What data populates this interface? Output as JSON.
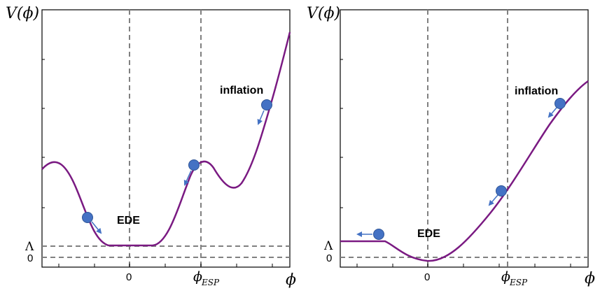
{
  "colors": {
    "curve": "#7a1a82",
    "ball": "#4472c4",
    "ball_stroke": "#2f5597",
    "arrow": "#4472c4",
    "dashed": "#808080",
    "frame": "#000000"
  },
  "left_panel": {
    "y_axis_label": "V(ϕ)",
    "x_axis_label": "ϕ",
    "y_tick_lambda": "Λ",
    "y_tick_zero": "0",
    "x_tick_zero": "0",
    "x_tick_esp_main": "ϕ",
    "x_tick_esp_sub": "ESP",
    "annotation_ede": "EDE",
    "annotation_inflation": "inflation"
  },
  "right_panel": {
    "y_axis_label": "V(ϕ)",
    "x_axis_label": "ϕ",
    "y_tick_lambda": "Λ",
    "y_tick_zero": "0",
    "x_tick_zero": "0",
    "x_tick_esp_main": "ϕ",
    "x_tick_esp_sub": "ESP",
    "annotation_ede": "EDE",
    "annotation_inflation": "inflation"
  }
}
